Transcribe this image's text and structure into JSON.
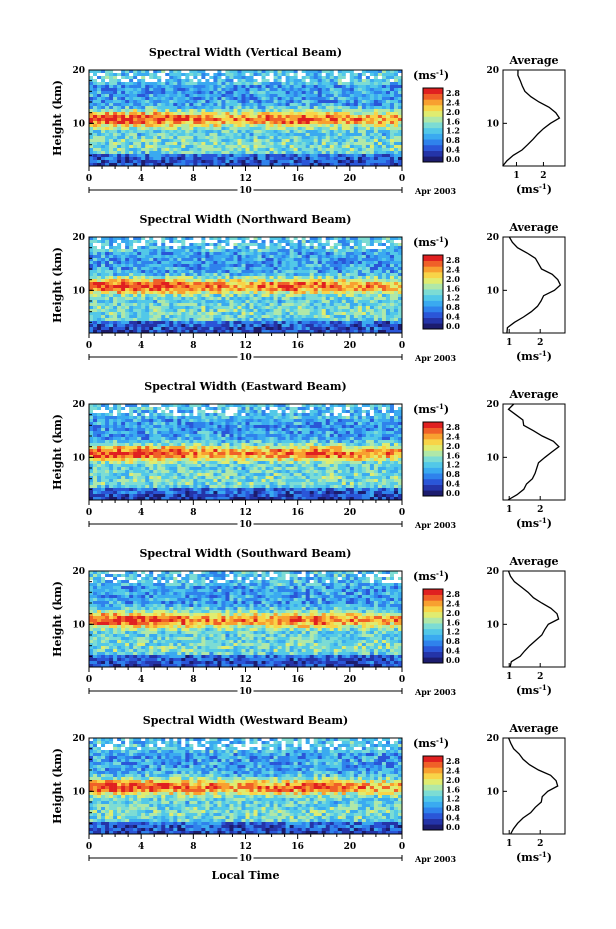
{
  "figure": {
    "xlabel": "Local Time",
    "date_label": "Apr 2003",
    "colorbar_unit": "(ms",
    "colorbar_unit_exp": "-1",
    "colorbar_unit_close": ")",
    "colorbar_ticks": [
      "2.8",
      "2.4",
      "2.0",
      "1.6",
      "1.2",
      "0.8",
      "0.4",
      "0.0"
    ],
    "average_title": "Average",
    "average_unit": "(ms",
    "average_unit_exp": "-1",
    "average_unit_close": ")",
    "x_ticks": [
      "0",
      "4",
      "8",
      "12",
      "16",
      "20",
      "0"
    ],
    "day_label": "10",
    "ylabel": "Height (km)",
    "y_ticks": [
      "20",
      "10"
    ]
  },
  "palette": [
    "#1c1c6e",
    "#2434a8",
    "#2a56d8",
    "#2f82ec",
    "#3aaaf0",
    "#52c8e8",
    "#7cdcd4",
    "#b0e8a8",
    "#e0ec70",
    "#f8d448",
    "#f8a030",
    "#f06028",
    "#e02020"
  ],
  "chart_data": [
    {
      "type": "heatmap",
      "title": "Spectral Width (Vertical Beam)",
      "xlim": [
        0,
        24
      ],
      "ylim": [
        2,
        20
      ],
      "vlim": [
        0,
        2.8
      ],
      "profile": {
        "heights": [
          2,
          3,
          4,
          5,
          6,
          7,
          8,
          9,
          10,
          11,
          12,
          13,
          14,
          15,
          16,
          17,
          18,
          19,
          20
        ],
        "values": [
          0.5,
          0.6,
          0.9,
          1.2,
          1.4,
          1.6,
          1.8,
          2.0,
          2.3,
          2.6,
          2.5,
          2.2,
          1.8,
          1.5,
          1.3,
          1.2,
          1.2,
          1.1,
          1.0
        ]
      },
      "avg_xticks": [
        "1",
        "2"
      ],
      "avg_xlim": [
        0.5,
        2.8
      ]
    },
    {
      "type": "heatmap",
      "title": "Spectral Width (Northward Beam)",
      "xlim": [
        0,
        24
      ],
      "ylim": [
        2,
        20
      ],
      "vlim": [
        0,
        2.8
      ],
      "profile": {
        "heights": [
          2,
          3,
          4,
          5,
          6,
          7,
          8,
          9,
          10,
          11,
          12,
          13,
          14,
          15,
          16,
          17,
          18,
          19,
          20
        ],
        "values": [
          0.9,
          1.0,
          1.2,
          1.5,
          1.7,
          1.9,
          2.0,
          2.1,
          2.4,
          2.7,
          2.6,
          2.4,
          2.1,
          1.9,
          1.8,
          1.6,
          1.3,
          1.1,
          1.0
        ]
      },
      "avg_xticks": [
        "1",
        "2"
      ],
      "avg_xlim": [
        0.8,
        2.8
      ]
    },
    {
      "type": "heatmap",
      "title": "Spectral Width (Eastward Beam)",
      "xlim": [
        0,
        24
      ],
      "ylim": [
        2,
        20
      ],
      "vlim": [
        0,
        2.8
      ],
      "profile": {
        "heights": [
          2,
          3,
          4,
          5,
          6,
          7,
          8,
          9,
          10,
          11,
          12,
          13,
          14,
          15,
          16,
          17,
          18,
          19,
          20
        ],
        "values": [
          1.0,
          1.2,
          1.5,
          1.6,
          1.7,
          1.8,
          1.9,
          2.0,
          2.2,
          2.4,
          2.6,
          2.4,
          2.1,
          1.8,
          1.5,
          1.4,
          1.2,
          1.0,
          1.1
        ]
      },
      "avg_xticks": [
        "1",
        "2"
      ],
      "avg_xlim": [
        0.8,
        2.8
      ]
    },
    {
      "type": "heatmap",
      "title": "Spectral Width (Southward Beam)",
      "xlim": [
        0,
        24
      ],
      "ylim": [
        2,
        20
      ],
      "vlim": [
        0,
        2.8
      ],
      "profile": {
        "heights": [
          2,
          3,
          4,
          5,
          6,
          7,
          8,
          9,
          10,
          11,
          12,
          13,
          14,
          15,
          16,
          17,
          18,
          19,
          20
        ],
        "values": [
          1.0,
          1.1,
          1.3,
          1.5,
          1.7,
          1.9,
          2.0,
          2.1,
          2.3,
          2.6,
          2.5,
          2.3,
          2.0,
          1.8,
          1.6,
          1.4,
          1.2,
          1.1,
          1.0
        ]
      },
      "avg_xticks": [
        "1",
        "2"
      ],
      "avg_xlim": [
        0.8,
        2.8
      ]
    },
    {
      "type": "heatmap",
      "title": "Spectral Width (Westward Beam)",
      "xlim": [
        0,
        24
      ],
      "ylim": [
        2,
        20
      ],
      "vlim": [
        0,
        2.8
      ],
      "profile": {
        "heights": [
          2,
          3,
          4,
          5,
          6,
          7,
          8,
          9,
          10,
          11,
          12,
          13,
          14,
          15,
          16,
          17,
          18,
          19,
          20
        ],
        "values": [
          1.0,
          1.1,
          1.3,
          1.5,
          1.7,
          1.9,
          2.0,
          2.1,
          2.3,
          2.6,
          2.5,
          2.3,
          2.0,
          1.7,
          1.5,
          1.3,
          1.1,
          1.0,
          1.0
        ]
      },
      "avg_xticks": [
        "1",
        "2"
      ],
      "avg_xlim": [
        0.8,
        2.8
      ]
    }
  ]
}
